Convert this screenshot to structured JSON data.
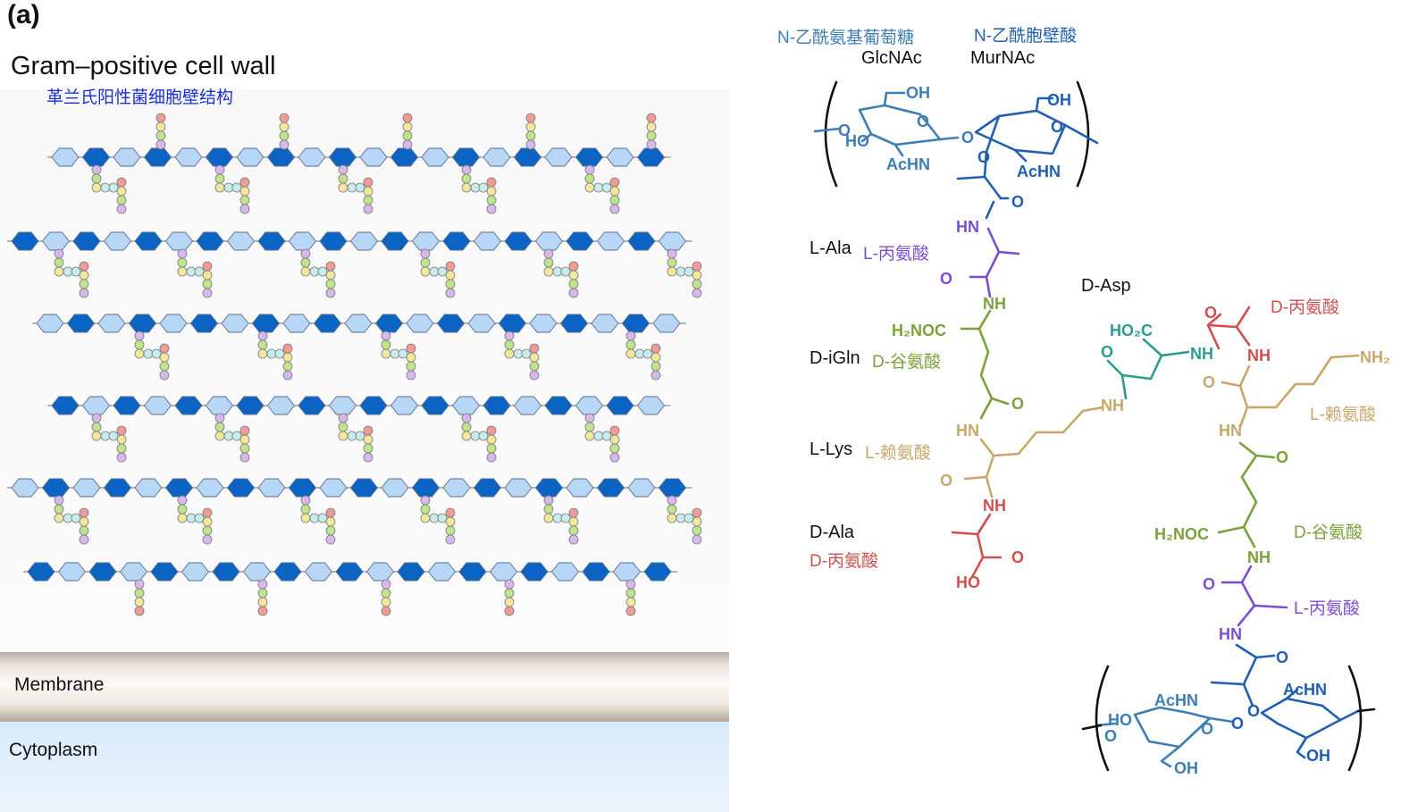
{
  "panel_label": "(a)",
  "left": {
    "title_en": "Gram–positive cell wall",
    "title_zh": "革兰氏阳性菌细胞壁结构",
    "membrane_label": "Membrane",
    "cytoplasm_label": "Cytoplasm"
  },
  "right": {
    "glcnac_zh": "N-乙酰氨基葡萄糖",
    "glcnac_en": "GlcNAc",
    "murnac_zh": "N-乙酰胞壁酸",
    "murnac_en": "MurNAc",
    "lala_en": "L-Ala",
    "lala_zh": "L-丙氨酸",
    "dasp_en": "D-Asp",
    "diglin_en": "D-iGln",
    "diglin_zh": "D-谷氨酸",
    "llys_en": "L-Lys",
    "llys_zh": "L-赖氨酸",
    "dala_en": "D-Ala",
    "dala_zh": "D-丙氨酸",
    "r_dala_zh": "D-丙氨酸",
    "r_llys_zh": "L-赖氨酸",
    "r_dglu_zh": "D-谷氨酸",
    "r_lala_zh": "L-丙氨酸"
  },
  "chem": {
    "oh": "OH",
    "o": "O",
    "ho": "HO",
    "achn": "AcHN",
    "nh": "NH",
    "hn": "HN",
    "h2noc": "H₂NOC",
    "ho2c": "HO₂C",
    "nh2": "NH₂"
  },
  "colors": {
    "sugar_blue": "#1f5fb3",
    "sugar_light": "#3d7fb5",
    "ala_purple": "#7a4fcf",
    "gln_green": "#79a23a",
    "lys_tan": "#c7a86a",
    "dala_red": "#d05050",
    "asp_teal": "#2a9d8f",
    "hex_light": "#b8d6f5",
    "hex_dark": "#0b63c4",
    "bead_red": "#f29a96",
    "bead_yellow": "#f2e79b",
    "bead_green": "#bfe48c",
    "bead_purple": "#d8b8ec",
    "bead_cyan": "#c8ecec"
  }
}
